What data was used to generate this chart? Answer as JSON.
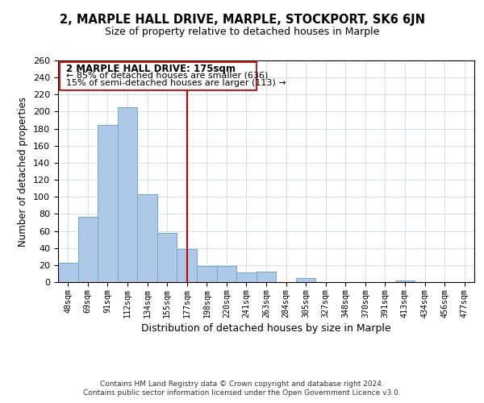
{
  "title": "2, MARPLE HALL DRIVE, MARPLE, STOCKPORT, SK6 6JN",
  "subtitle": "Size of property relative to detached houses in Marple",
  "xlabel": "Distribution of detached houses by size in Marple",
  "ylabel": "Number of detached properties",
  "bar_labels": [
    "48sqm",
    "69sqm",
    "91sqm",
    "112sqm",
    "134sqm",
    "155sqm",
    "177sqm",
    "198sqm",
    "220sqm",
    "241sqm",
    "263sqm",
    "284sqm",
    "305sqm",
    "327sqm",
    "348sqm",
    "370sqm",
    "391sqm",
    "413sqm",
    "434sqm",
    "456sqm",
    "477sqm"
  ],
  "bar_values": [
    23,
    77,
    184,
    205,
    103,
    58,
    39,
    19,
    19,
    11,
    12,
    0,
    5,
    0,
    0,
    0,
    0,
    2,
    0,
    0,
    0
  ],
  "bar_color": "#aec9e8",
  "bar_edge_color": "#6aaad4",
  "vline_x_idx": 6,
  "vline_color": "#cc0000",
  "annotation_title": "2 MARPLE HALL DRIVE: 175sqm",
  "annotation_line1": "← 85% of detached houses are smaller (636)",
  "annotation_line2": "15% of semi-detached houses are larger (113) →",
  "ylim": [
    0,
    260
  ],
  "yticks": [
    0,
    20,
    40,
    60,
    80,
    100,
    120,
    140,
    160,
    180,
    200,
    220,
    240,
    260
  ],
  "footer1": "Contains HM Land Registry data © Crown copyright and database right 2024.",
  "footer2": "Contains public sector information licensed under the Open Government Licence v3.0."
}
